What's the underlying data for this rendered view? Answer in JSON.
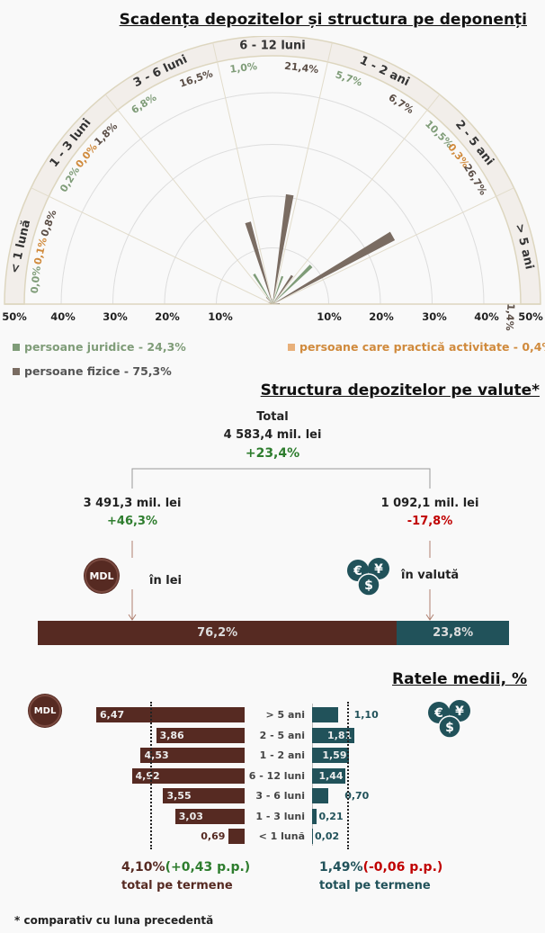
{
  "chart_data": [
    {
      "type": "polar-bar",
      "title": "Scadența depozitelor și structura pe deponenți",
      "sectors": [
        "< 1 lună",
        "1 - 3 luni",
        "3 - 6 luni",
        "6 - 12 luni",
        "1 - 2 ani",
        "2 - 5 ani",
        "> 5 ani"
      ],
      "radial_ticks": [
        "50%",
        "40%",
        "30%",
        "20%",
        "10%",
        "10%",
        "20%",
        "30%",
        "40%",
        "50%"
      ],
      "rlim": [
        0,
        50
      ],
      "series": [
        {
          "name": "persoane juridice - 24,3%",
          "color": "#7f9c78",
          "values": [
            0.0,
            0.2,
            6.8,
            1.0,
            5.7,
            10.5,
            null
          ],
          "labels": [
            "0,0%",
            "0,2%",
            "6,8%",
            "1,0%",
            "5,7%",
            "10,5%",
            null
          ]
        },
        {
          "name": "persoane care practică activitate - 0,4%",
          "color": "#d08a3c",
          "values": [
            0.1,
            0.0,
            null,
            null,
            null,
            0.3,
            null
          ],
          "labels": [
            "0,1%",
            "0,0%",
            null,
            null,
            null,
            "0,3%",
            null
          ]
        },
        {
          "name": "persoane fizice - 75,3%",
          "color": "#7a6c62",
          "values": [
            0.8,
            1.8,
            16.5,
            21.4,
            6.7,
            26.7,
            1.4
          ],
          "labels": [
            "0,8%",
            "1,8%",
            "16,5%",
            "21,4%",
            "6,7%",
            "26,7%",
            "1,4%"
          ]
        }
      ],
      "legend": "bottom"
    },
    {
      "type": "bar",
      "title": "Ratele medii, %",
      "categories": [
        "> 5 ani",
        "2 - 5 ani",
        "1 - 2 ani",
        "6 - 12 luni",
        "3 - 6 luni",
        "1 - 3 luni",
        "< 1 lună"
      ],
      "series": [
        {
          "name": "MDL",
          "color": "#562a22",
          "values": [
            6.47,
            3.86,
            4.53,
            4.92,
            3.55,
            3.03,
            0.69
          ],
          "labels": [
            "6,47",
            "3,86",
            "4,53",
            "4,92",
            "3,55",
            "3,03",
            "0,69"
          ],
          "average": 4.1
        },
        {
          "name": "valută",
          "color": "#21525a",
          "values": [
            1.1,
            1.81,
            1.59,
            1.44,
            0.7,
            0.21,
            0.02
          ],
          "labels": [
            "1,10",
            "1,81",
            "1,59",
            "1,44",
            "0,70",
            "0,21",
            "0,02"
          ],
          "average": 1.49
        }
      ]
    }
  ],
  "valute": {
    "title": "Structura depozitelor pe valute*",
    "total_label": "Total",
    "total_value": "4 583,4 mil. lei",
    "total_change": "+23,4%",
    "lei_value": "3 491,3 mil. lei",
    "lei_change": "+46,3%",
    "valuta_value": "1 092,1 mil. lei",
    "valuta_change": "-17,8%",
    "lei_label": "în lei",
    "valuta_label": "în valută",
    "mdl_coin": "MDL",
    "lei_share": 76.2,
    "lei_share_label": "76,2%",
    "valuta_share_label": "23,8%"
  },
  "rates": {
    "mdl_coin": "MDL",
    "mdl_total": "4,10%",
    "mdl_change": "(+0,43 p.p.)",
    "mdl_caption": "total pe termene",
    "fx_total": "1,49%",
    "fx_change": "(-0,06 p.p.)",
    "fx_caption": "total pe termene"
  },
  "footnote_star": "*",
  "footnote": "comparativ cu luna precedentă",
  "colors": {
    "mdl": "#562a22",
    "fx": "#21525a",
    "positive": "#2e7d2e",
    "negative": "#c00000"
  }
}
